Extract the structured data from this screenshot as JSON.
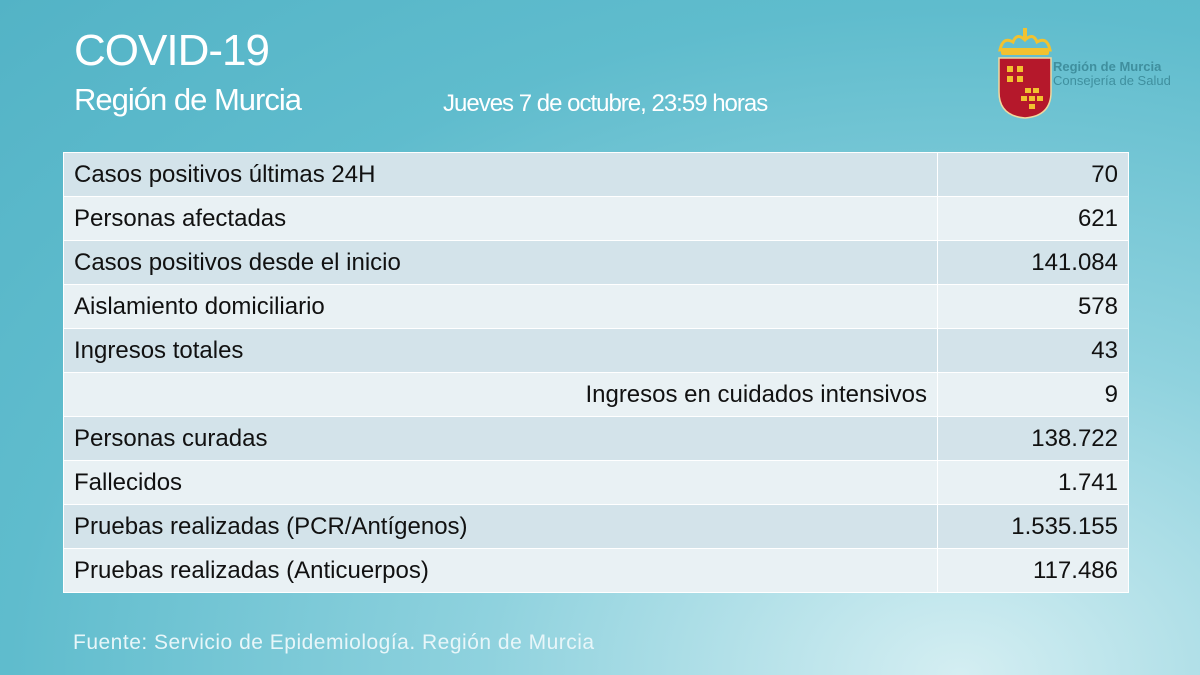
{
  "header": {
    "title": "COVID-19",
    "subtitle": "Región de Murcia",
    "date": "Jueves 7 de octubre, 23:59 horas"
  },
  "logo": {
    "line1": "Región de Murcia",
    "line2": "Consejería de Salud",
    "colors": {
      "shield": "#b5182b",
      "crown": "#f2c230"
    }
  },
  "rows": [
    {
      "label": "Casos positivos últimas 24H",
      "value": "70"
    },
    {
      "label": "Personas afectadas",
      "value": "621"
    },
    {
      "label": "Casos positivos desde el inicio",
      "value": "141.084"
    },
    {
      "label": "Aislamiento domiciliario",
      "value": "578"
    },
    {
      "label": "Ingresos totales",
      "value": "43"
    },
    {
      "label": "Ingresos en cuidados intensivos",
      "value": "9"
    },
    {
      "label": "Personas curadas",
      "value": "138.722"
    },
    {
      "label": "Fallecidos",
      "value": "1.741"
    },
    {
      "label": "Pruebas realizadas (PCR/Antígenos)",
      "value": "1.535.155"
    },
    {
      "label": "Pruebas realizadas (Anticuerpos)",
      "value": "117.486"
    }
  ],
  "footer": {
    "source": "Fuente: Servicio de Epidemiología. Región de Murcia"
  }
}
